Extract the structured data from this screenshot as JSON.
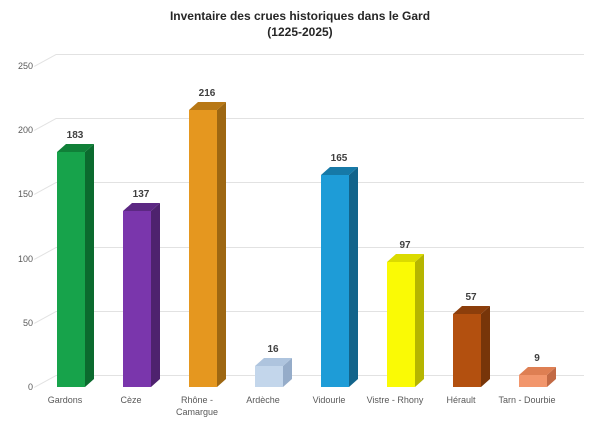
{
  "title": {
    "line1": "Inventaire des crues historiques dans le Gard",
    "line2": "(1225-2025)"
  },
  "chart_data": {
    "type": "bar",
    "style": "3d-column",
    "title": "Inventaire des crues historiques dans le Gard (1225-2025)",
    "xlabel": "",
    "ylabel": "",
    "categories": [
      "Gardons",
      "Cèze",
      "Rhône - Camargue",
      "Ardèche",
      "Vidourle",
      "Vistre - Rhony",
      "Hérault",
      "Tarn - Dourbie"
    ],
    "values": [
      183,
      137,
      216,
      16,
      165,
      97,
      57,
      9
    ],
    "data_labels": [
      "183",
      "137",
      "216",
      "16",
      "165",
      "97",
      "57",
      "9"
    ],
    "ylim": [
      0,
      250
    ],
    "yticks": [
      0,
      50,
      100,
      150,
      200,
      250
    ],
    "grid": true,
    "legend": false,
    "bar_colors": [
      {
        "front": "#17a34b",
        "top": "#108038",
        "side": "#0b6b2e"
      },
      {
        "front": "#7a36ac",
        "top": "#5c2883",
        "side": "#4e226e"
      },
      {
        "front": "#e5971f",
        "top": "#b87815",
        "side": "#9e6712"
      },
      {
        "front": "#c3d6eb",
        "top": "#aec4de",
        "side": "#95acc9"
      },
      {
        "front": "#1e9cd7",
        "top": "#1679a7",
        "side": "#12648b"
      },
      {
        "front": "#fafa05",
        "top": "#dbdb00",
        "side": "#b5b500"
      },
      {
        "front": "#b3500f",
        "top": "#8c3e0b",
        "side": "#773509"
      },
      {
        "front": "#f2966c",
        "top": "#de7f53",
        "side": "#c26a45"
      }
    ]
  },
  "colors": {
    "background": "#ffffff",
    "gridline": "#e2e2e2",
    "axis_text": "#595959",
    "value_label_text": "#3f3f3f",
    "title_text": "#262626"
  }
}
